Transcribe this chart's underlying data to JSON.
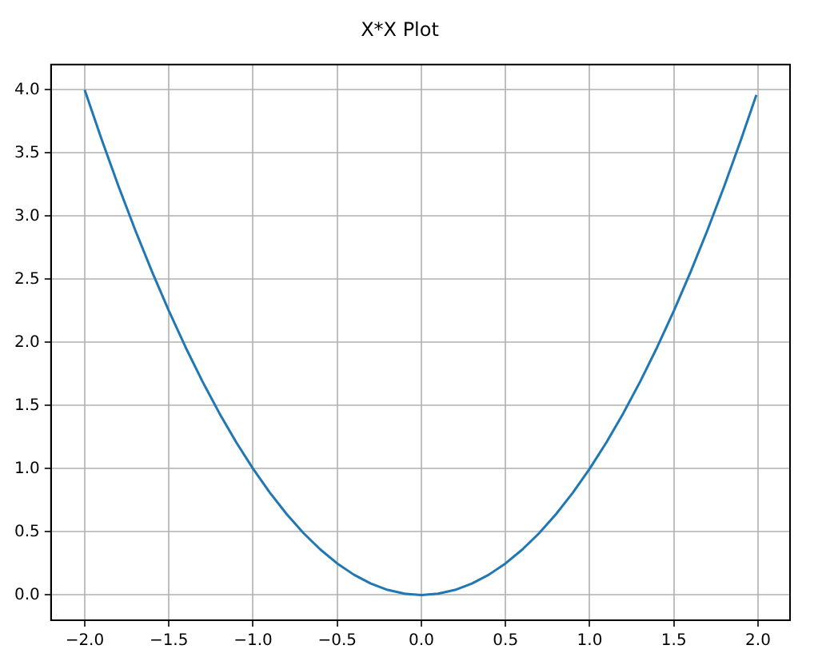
{
  "chart_data": {
    "type": "line",
    "title": "X*X Plot",
    "x": [
      -2.0,
      -1.9,
      -1.8,
      -1.7,
      -1.6,
      -1.5,
      -1.4,
      -1.3,
      -1.2,
      -1.1,
      -1.0,
      -0.9,
      -0.8,
      -0.7,
      -0.6,
      -0.5,
      -0.4,
      -0.3,
      -0.2,
      -0.1,
      0.0,
      0.1,
      0.2,
      0.3,
      0.4,
      0.5,
      0.6,
      0.7,
      0.8,
      0.9,
      1.0,
      1.1,
      1.2,
      1.3,
      1.4,
      1.5,
      1.6,
      1.7,
      1.8,
      1.9,
      1.99
    ],
    "series": [
      {
        "color": "#1f77b4",
        "values": [
          4.0,
          3.61,
          3.24,
          2.89,
          2.56,
          2.25,
          1.96,
          1.69,
          1.44,
          1.21,
          1.0,
          0.81,
          0.64,
          0.49,
          0.36,
          0.25,
          0.16,
          0.09,
          0.04,
          0.01,
          0.0,
          0.01,
          0.04,
          0.09,
          0.16,
          0.25,
          0.36,
          0.49,
          0.64,
          0.81,
          1.0,
          1.21,
          1.44,
          1.69,
          1.96,
          2.25,
          2.56,
          2.89,
          3.24,
          3.61,
          3.96
        ]
      }
    ],
    "xlim": [
      -2.2,
      2.19
    ],
    "ylim": [
      -0.2,
      4.2
    ],
    "xticks": [
      {
        "value": -2,
        "label": "−2.0"
      },
      {
        "value": -1.5,
        "label": "−1.5"
      },
      {
        "value": -1,
        "label": "−1.0"
      },
      {
        "value": -0.5,
        "label": "−0.5"
      },
      {
        "value": 0,
        "label": "0.0"
      },
      {
        "value": 0.5,
        "label": "0.5"
      },
      {
        "value": 1,
        "label": "1.0"
      },
      {
        "value": 1.5,
        "label": "1.5"
      },
      {
        "value": 2,
        "label": "2.0"
      }
    ],
    "yticks": [
      {
        "value": 0,
        "label": "0.0"
      },
      {
        "value": 0.5,
        "label": "0.5"
      },
      {
        "value": 1,
        "label": "1.0"
      },
      {
        "value": 1.5,
        "label": "1.5"
      },
      {
        "value": 2,
        "label": "2.0"
      },
      {
        "value": 2.5,
        "label": "2.5"
      },
      {
        "value": 3,
        "label": "3.0"
      },
      {
        "value": 3.5,
        "label": "3.5"
      },
      {
        "value": 4,
        "label": "4.0"
      }
    ],
    "grid": true,
    "marker": "none",
    "line_style": "solid",
    "legend": false
  }
}
